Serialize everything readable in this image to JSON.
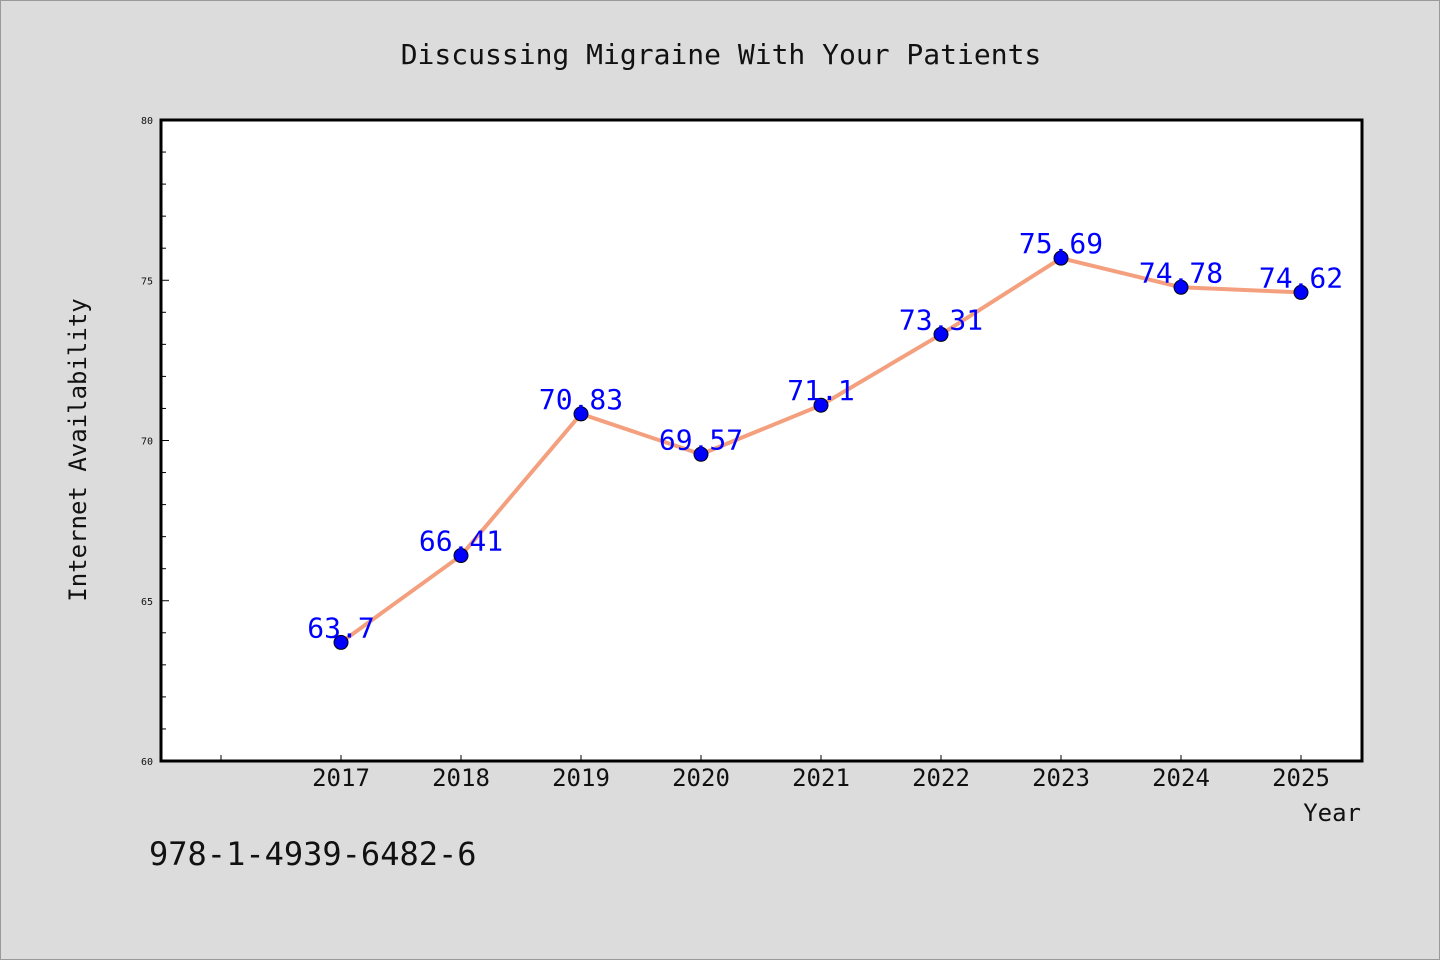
{
  "chart_data": {
    "type": "line",
    "title": "Discussing Migraine With Your Patients",
    "xlabel": "Year",
    "ylabel": "Internet Availability",
    "categories": [
      "2017",
      "2018",
      "2019",
      "2020",
      "2021",
      "2022",
      "2023",
      "2024",
      "2025"
    ],
    "series": [
      {
        "values": [
          63.7,
          66.41,
          70.83,
          69.57,
          71.1,
          73.31,
          75.69,
          74.78,
          74.62
        ]
      }
    ],
    "data_labels": [
      "63.7",
      "66.41",
      "70.83",
      "69.57",
      "71.1",
      "73.31",
      "75.69",
      "74.78",
      "74.62"
    ],
    "ylim": [
      60,
      80
    ],
    "yticks": [
      60,
      65,
      70,
      75,
      80
    ],
    "grid": false,
    "legend": "none",
    "colors": {
      "line": "#f4a07f",
      "marker": "#0000ff",
      "label": "#0000ff",
      "background": "#dcdcdc",
      "plot": "#ffffff"
    }
  },
  "annotation": {
    "text": "978-1-4939-6482-6"
  }
}
